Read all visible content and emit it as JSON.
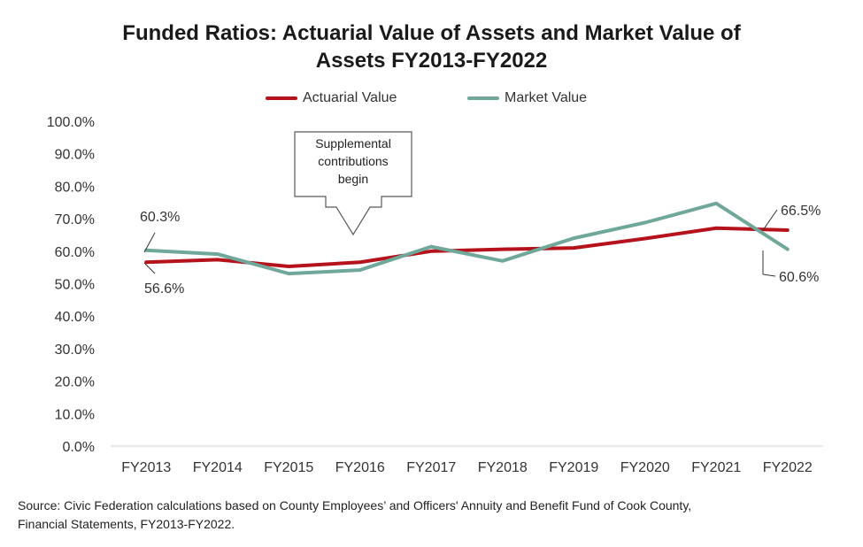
{
  "title_line1": "Funded Ratios: Actuarial Value of Assets and Market Value of",
  "title_line2": "Assets FY2013-FY2022",
  "source_line1": "Source: Civic Federation calculations based on County Employees’ and Officers' Annuity and Benefit Fund of Cook County,",
  "source_line2": "Financial Statements, FY2013-FY2022.",
  "callout": {
    "line1": "Supplemental",
    "line2": "contributions",
    "line3": "begin"
  },
  "chart_data": {
    "type": "line",
    "title": "Funded Ratios: Actuarial Value of Assets and Market Value of Assets FY2013-FY2022",
    "categories": [
      "FY2013",
      "FY2014",
      "FY2015",
      "FY2016",
      "FY2017",
      "FY2018",
      "FY2019",
      "FY2020",
      "FY2021",
      "FY2022"
    ],
    "series": [
      {
        "name": "Actuarial Value",
        "color": "#b5121b",
        "values": [
          56.6,
          57.4,
          55.3,
          56.6,
          60.0,
          60.6,
          61.0,
          63.9,
          67.1,
          66.5
        ]
      },
      {
        "name": "Market Value",
        "color": "#6fa89a",
        "values": [
          60.3,
          59.1,
          53.1,
          54.2,
          61.4,
          57.0,
          64.0,
          68.8,
          74.7,
          60.6
        ]
      }
    ],
    "yticks": [
      "0.0%",
      "10.0%",
      "20.0%",
      "30.0%",
      "40.0%",
      "50.0%",
      "60.0%",
      "70.0%",
      "80.0%",
      "90.0%",
      "100.0%"
    ],
    "ylim": [
      0,
      100
    ],
    "grid": false,
    "legend_position": "top",
    "annotations": [
      {
        "text": "60.3%",
        "series": "Market Value",
        "category": "FY2013"
      },
      {
        "text": "56.6%",
        "series": "Actuarial Value",
        "category": "FY2013"
      },
      {
        "text": "66.5%",
        "series": "Actuarial Value",
        "category": "FY2022"
      },
      {
        "text": "60.6%",
        "series": "Market Value",
        "category": "FY2022"
      }
    ]
  }
}
